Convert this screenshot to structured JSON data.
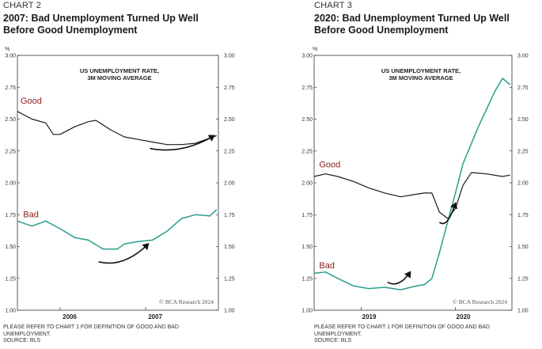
{
  "chart_data": [
    {
      "type": "line",
      "chart_number": "CHART 2",
      "title": "2007: Bad Unemployment Turned Up Well Before Good Unemployment",
      "title_lines": [
        "2007: Bad Unemployment Turned Up Well",
        "Before Good Unemployment"
      ],
      "inner_title": [
        "US UNEMPLOYMENT RATE,",
        "3M MOVING AVERAGE"
      ],
      "unit": "%",
      "ylim": [
        1.0,
        3.0
      ],
      "yticks": [
        "1.00",
        "1.25",
        "1.50",
        "1.75",
        "2.00",
        "2.25",
        "2.50",
        "2.75",
        "3.00"
      ],
      "xlim": [
        2005.5,
        2007.85
      ],
      "xticks": [
        {
          "label": "2006",
          "value": 2006.0
        },
        {
          "label": "2007",
          "value": 2007.0
        }
      ],
      "watermark": "© BCA Research 2024",
      "footnote": [
        "PLEASE REFER TO CHART 1 FOR DEFINITION OF GOOD AND BAD",
        "UNEMPLOYMENT.",
        "SOURCE: BLS"
      ],
      "annotations": [
        {
          "from": [
            2007.05,
            2.27
          ],
          "to": [
            2007.8,
            2.37
          ]
        },
        {
          "from": [
            2006.45,
            1.38
          ],
          "to": [
            2007.03,
            1.52
          ]
        }
      ],
      "series": [
        {
          "name": "Good",
          "color": "#1a1a1a",
          "label_at": [
            2005.5,
            2.62
          ],
          "x": [
            2005.5,
            2005.67,
            2005.83,
            2005.92,
            2006.0,
            2006.17,
            2006.33,
            2006.42,
            2006.58,
            2006.75,
            2006.92,
            2007.08,
            2007.25,
            2007.42,
            2007.58,
            2007.83
          ],
          "values": [
            2.56,
            2.5,
            2.47,
            2.38,
            2.38,
            2.44,
            2.48,
            2.49,
            2.42,
            2.36,
            2.34,
            2.32,
            2.3,
            2.3,
            2.31,
            2.37
          ]
        },
        {
          "name": "Bad",
          "color": "#2a9d8f",
          "label_at": [
            2005.53,
            1.73
          ],
          "x": [
            2005.5,
            2005.67,
            2005.83,
            2006.0,
            2006.17,
            2006.33,
            2006.5,
            2006.67,
            2006.75,
            2006.92,
            2007.08,
            2007.25,
            2007.42,
            2007.58,
            2007.75,
            2007.83
          ],
          "values": [
            1.7,
            1.66,
            1.7,
            1.64,
            1.57,
            1.55,
            1.48,
            1.48,
            1.52,
            1.54,
            1.55,
            1.62,
            1.72,
            1.75,
            1.74,
            1.79
          ]
        }
      ]
    },
    {
      "type": "line",
      "chart_number": "CHART 3",
      "title": "2020: Bad Unemployment Turned Up Well Before Good Unemployment",
      "title_lines": [
        "2020: Bad Unemployment Turned Up Well",
        "Before Good Unemployment"
      ],
      "inner_title": [
        "US UNEMPLOYMENT RATE,",
        "3M MOVING AVERAGE"
      ],
      "unit": "%",
      "ylim": [
        1.0,
        3.0
      ],
      "yticks": [
        "1.00",
        "1.25",
        "1.50",
        "1.75",
        "2.00",
        "2.25",
        "2.50",
        "2.75",
        "3.00"
      ],
      "xlim": [
        2018.5,
        2020.6
      ],
      "xticks": [
        {
          "label": "2019",
          "value": 2019.0
        },
        {
          "label": "2020",
          "value": 2020.0
        }
      ],
      "watermark": "© BCA Research 2024",
      "footnote": [
        "PLEASE REFER TO CHART 1 FOR DEFINITION OF GOOD AND BAD",
        "UNEMPLOYMENT.",
        "SOURCE: BLS"
      ],
      "annotations": [
        {
          "from": [
            2019.28,
            1.22
          ],
          "to": [
            2019.52,
            1.3
          ]
        },
        {
          "from": [
            2019.83,
            1.69
          ],
          "to": [
            2020.0,
            1.84
          ]
        }
      ],
      "series": [
        {
          "name": "Good",
          "color": "#1a1a1a",
          "label_at": [
            2018.52,
            2.12
          ],
          "x": [
            2018.5,
            2018.62,
            2018.75,
            2018.92,
            2019.08,
            2019.25,
            2019.42,
            2019.58,
            2019.67,
            2019.75,
            2019.83,
            2019.92,
            2020.0,
            2020.08,
            2020.17,
            2020.33,
            2020.5,
            2020.58
          ],
          "values": [
            2.05,
            2.07,
            2.05,
            2.01,
            1.96,
            1.92,
            1.89,
            1.91,
            1.92,
            1.92,
            1.77,
            1.72,
            1.8,
            1.98,
            2.08,
            2.07,
            2.05,
            2.06
          ]
        },
        {
          "name": "Bad",
          "color": "#2a9d8f",
          "label_at": [
            2018.52,
            1.33
          ],
          "x": [
            2018.5,
            2018.62,
            2018.75,
            2018.92,
            2019.08,
            2019.25,
            2019.42,
            2019.58,
            2019.67,
            2019.75,
            2019.83,
            2019.92,
            2020.0,
            2020.08,
            2020.25,
            2020.42,
            2020.5,
            2020.58
          ],
          "values": [
            1.29,
            1.3,
            1.25,
            1.19,
            1.17,
            1.18,
            1.16,
            1.19,
            1.2,
            1.25,
            1.45,
            1.7,
            1.92,
            2.15,
            2.45,
            2.72,
            2.82,
            2.77
          ]
        }
      ]
    }
  ]
}
